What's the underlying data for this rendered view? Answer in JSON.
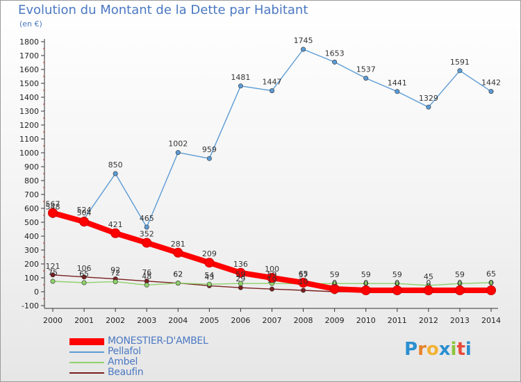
{
  "title": "Evolution du Montant de la Dette par Habitant",
  "subtitle": "(en €)",
  "brand": {
    "letters": [
      "P",
      "r",
      "o",
      "x",
      "i",
      "t",
      "i"
    ],
    "colors": [
      "#2b8fd0",
      "#e8822a",
      "#f2b233",
      "#2b8fd0",
      "#8cc43a",
      "#e84a3a",
      "#2b8fd0"
    ]
  },
  "chart_data": {
    "type": "line",
    "x": [
      "2000",
      "2001",
      "2002",
      "2003",
      "2004",
      "2005",
      "2006",
      "2007",
      "2008",
      "2009",
      "2010",
      "2011",
      "2012",
      "2013",
      "2014"
    ],
    "ylim": [
      -100,
      1800
    ],
    "yticks": [
      -100,
      0,
      100,
      200,
      300,
      400,
      500,
      600,
      700,
      800,
      900,
      1000,
      1100,
      1200,
      1300,
      1400,
      1500,
      1600,
      1700,
      1800
    ],
    "grid": false,
    "legend_position": "bottom-left",
    "series": [
      {
        "name": "MONESTIER-D'AMBEL",
        "color": "#ff0000",
        "values": [
          567,
          504,
          421,
          352,
          281,
          209,
          136,
          100,
          65,
          20,
          10,
          10,
          10,
          10,
          10
        ],
        "labels": [
          "567",
          "504",
          "421",
          "352",
          "281",
          "209",
          "136",
          "100",
          "65",
          "",
          "",
          "",
          "",
          "",
          ""
        ]
      },
      {
        "name": "Pellafol",
        "color": "#5b9bd5",
        "values": [
          548,
          524,
          850,
          465,
          1002,
          959,
          1481,
          1447,
          1745,
          1653,
          1537,
          1441,
          1329,
          1591,
          1442
        ],
        "labels": [
          "548",
          "524",
          "850",
          "465",
          "1002",
          "959",
          "1481",
          "1447",
          "1745",
          "1653",
          "1537",
          "1441",
          "1329",
          "1591",
          "1442"
        ]
      },
      {
        "name": "Ambel",
        "color": "#8fd16a",
        "values": [
          75,
          65,
          72,
          48,
          62,
          54,
          59,
          59,
          57,
          59,
          59,
          59,
          45,
          59,
          65
        ],
        "labels": [
          "75",
          "65",
          "72",
          "48",
          "62",
          "54",
          "59",
          "59",
          "57",
          "59",
          "59",
          "59",
          "45",
          "59",
          "65"
        ]
      },
      {
        "name": "Beaufin",
        "color": "#7a1e1e",
        "values": [
          121,
          106,
          92,
          76,
          62,
          43,
          29,
          19,
          10,
          0,
          0,
          0,
          0,
          0,
          0
        ],
        "labels": [
          "121",
          "106",
          "92",
          "76",
          "62",
          "43",
          "29",
          "19",
          "10",
          "0",
          "0",
          "0",
          "0",
          "0",
          "0"
        ]
      }
    ]
  }
}
